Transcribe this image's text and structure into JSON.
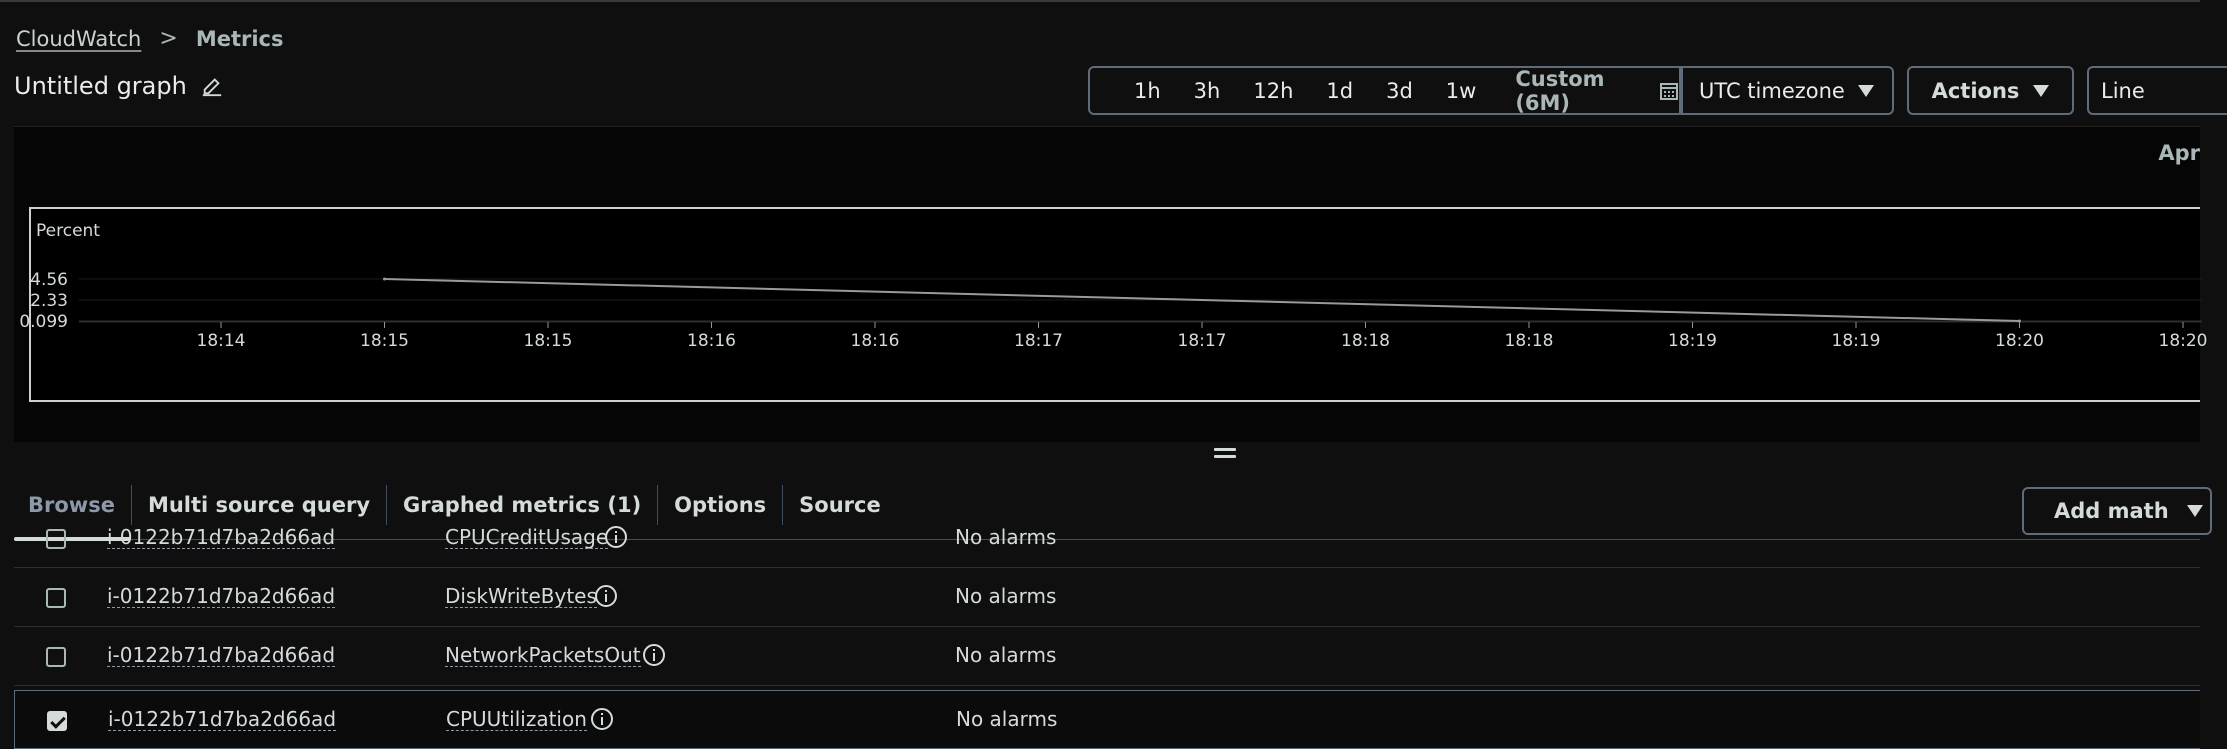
{
  "breadcrumb": {
    "root": "CloudWatch",
    "separator": ">",
    "current": "Metrics"
  },
  "graph": {
    "title": "Untitled graph"
  },
  "toolbar": {
    "ranges": [
      "1h",
      "3h",
      "12h",
      "1d",
      "3d",
      "1w"
    ],
    "custom_label": "Custom (6M)",
    "timezone": "UTC timezone",
    "actions_label": "Actions",
    "chart_type": "Line"
  },
  "chart_date_label": "Apr",
  "chart_data": {
    "type": "line",
    "ylabel": "Percent",
    "y_ticks": [
      "4.56",
      "2.33",
      "0.099"
    ],
    "x_ticks": [
      "18:14",
      "18:15",
      "18:15",
      "18:16",
      "18:16",
      "18:17",
      "18:17",
      "18:18",
      "18:18",
      "18:19",
      "18:19",
      "18:20",
      "18:20"
    ],
    "series": [
      {
        "points": [
          {
            "x": "18:15",
            "y": 4.56
          },
          {
            "x": "18:20",
            "y": 0.099
          }
        ]
      }
    ],
    "ylim": [
      0.099,
      4.56
    ],
    "grid": true
  },
  "tabs": [
    {
      "label": "Browse",
      "active": true
    },
    {
      "label": "Multi source query",
      "active": false
    },
    {
      "label": "Graphed metrics (1)",
      "active": false
    },
    {
      "label": "Options",
      "active": false
    },
    {
      "label": "Source",
      "active": false
    }
  ],
  "add_math_label": "Add math",
  "rows": [
    {
      "instance": "i-0122b71d7ba2d66ad",
      "metric": "CPUCreditUsage",
      "alarms": "No alarms",
      "checked": false
    },
    {
      "instance": "i-0122b71d7ba2d66ad",
      "metric": "DiskWriteBytes",
      "alarms": "No alarms",
      "checked": false
    },
    {
      "instance": "i-0122b71d7ba2d66ad",
      "metric": "NetworkPacketsOut",
      "alarms": "No alarms",
      "checked": false
    },
    {
      "instance": "i-0122b71d7ba2d66ad",
      "metric": "CPUUtilization",
      "alarms": "No alarms",
      "checked": true
    }
  ],
  "colors": {
    "line": "#9a9a9a",
    "grid": "#1c1c1c",
    "border": "#5f6b7a"
  }
}
